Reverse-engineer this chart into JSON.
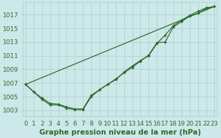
{
  "straight_line": {
    "x": [
      0,
      23
    ],
    "y": [
      1006.8,
      1018.2
    ]
  },
  "curve1": {
    "x": [
      0,
      1,
      2,
      3,
      4,
      5,
      6,
      7,
      8,
      9,
      10,
      11,
      12,
      13,
      14,
      15,
      16,
      17,
      18,
      19,
      20,
      21,
      22,
      23
    ],
    "y": [
      1006.8,
      1005.7,
      1004.8,
      1004.0,
      1003.9,
      1003.5,
      1003.2,
      1003.2,
      1005.2,
      1006.0,
      1006.8,
      1007.6,
      1008.5,
      1009.3,
      1010.2,
      1011.1,
      1012.9,
      1013.0,
      1015.2,
      1016.0,
      1016.8,
      1017.2,
      1017.9,
      1018.2
    ]
  },
  "curve2": {
    "x": [
      0,
      1,
      2,
      3,
      4,
      5,
      6,
      7,
      8,
      9,
      10,
      11,
      12,
      13,
      14,
      15,
      16,
      17,
      18,
      19,
      20,
      21,
      22,
      23
    ],
    "y": [
      1006.8,
      1005.7,
      1004.6,
      1003.8,
      1003.8,
      1003.3,
      1003.1,
      1003.1,
      1005.0,
      1006.0,
      1006.8,
      1007.5,
      1008.6,
      1009.5,
      1010.3,
      1011.0,
      1012.8,
      1014.0,
      1015.4,
      1016.2,
      1016.9,
      1017.5,
      1018.0,
      1018.2
    ]
  },
  "yticks": [
    1003,
    1005,
    1007,
    1009,
    1011,
    1013,
    1015,
    1017
  ],
  "xticks": [
    0,
    1,
    2,
    3,
    4,
    5,
    6,
    7,
    8,
    9,
    10,
    11,
    12,
    13,
    14,
    15,
    16,
    17,
    18,
    19,
    20,
    21,
    22,
    23
  ],
  "ylim": [
    1002.2,
    1018.8
  ],
  "xlim": [
    -0.3,
    23.3
  ],
  "line_color": "#2d6a2d",
  "bg_color": "#cce8e8",
  "grid_color": "#aacccc",
  "xlabel": "Graphe pression niveau de la mer (hPa)",
  "xlabel_fontsize": 7.5,
  "tick_fontsize": 6.5
}
